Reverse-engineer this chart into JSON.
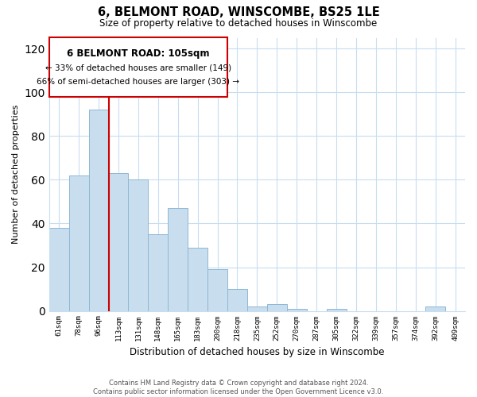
{
  "title": "6, BELMONT ROAD, WINSCOMBE, BS25 1LE",
  "subtitle": "Size of property relative to detached houses in Winscombe",
  "xlabel": "Distribution of detached houses by size in Winscombe",
  "ylabel": "Number of detached properties",
  "bar_color": "#c8dded",
  "bar_edge_color": "#8fb8d4",
  "categories": [
    "61sqm",
    "78sqm",
    "96sqm",
    "113sqm",
    "131sqm",
    "148sqm",
    "165sqm",
    "183sqm",
    "200sqm",
    "218sqm",
    "235sqm",
    "252sqm",
    "270sqm",
    "287sqm",
    "305sqm",
    "322sqm",
    "339sqm",
    "357sqm",
    "374sqm",
    "392sqm",
    "409sqm"
  ],
  "values": [
    38,
    62,
    92,
    63,
    60,
    35,
    47,
    29,
    19,
    10,
    2,
    3,
    1,
    0,
    1,
    0,
    0,
    0,
    0,
    2,
    0
  ],
  "ylim": [
    0,
    125
  ],
  "yticks": [
    0,
    20,
    40,
    60,
    80,
    100,
    120
  ],
  "vline_color": "#cc0000",
  "annotation_title": "6 BELMONT ROAD: 105sqm",
  "annotation_line1": "← 33% of detached houses are smaller (149)",
  "annotation_line2": "66% of semi-detached houses are larger (303) →",
  "footer_line1": "Contains HM Land Registry data © Crown copyright and database right 2024.",
  "footer_line2": "Contains public sector information licensed under the Open Government Licence v3.0.",
  "background_color": "#ffffff",
  "grid_color": "#c8ddf0"
}
